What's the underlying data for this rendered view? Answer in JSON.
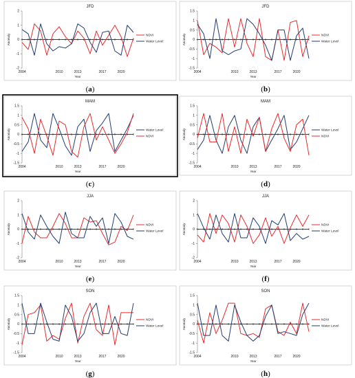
{
  "colors": {
    "ndvi": "#e8282b",
    "water_level": "#1f3a6e",
    "zero_line": "#000000"
  },
  "panels": [
    {
      "label_open": "(",
      "label_letter": "a",
      "label_close": ")"
    },
    {
      "label_open": "(",
      "label_letter": "b",
      "label_close": ")"
    },
    {
      "label_open": "(",
      "label_letter": "c",
      "label_close": ")"
    },
    {
      "label_open": "(",
      "label_letter": "d",
      "label_close": ")"
    },
    {
      "label_open": "(",
      "label_letter": "e",
      "label_close": ")"
    },
    {
      "label_open": "(",
      "label_letter": "f",
      "label_close": ")"
    },
    {
      "label_open": "(",
      "label_letter": "g",
      "label_close": ")"
    },
    {
      "label_open": "(",
      "label_letter": "h",
      "label_close": ")"
    }
  ],
  "chart_data": [
    {
      "type": "line",
      "title": "JFD",
      "xlabel": "Year",
      "ylabel": "Anomaly",
      "ylim": [
        -2,
        2
      ],
      "yticks": [
        -2,
        -1,
        0,
        1,
        2
      ],
      "x": [
        2004,
        2005,
        2006,
        2007,
        2008,
        2009,
        2010,
        2011,
        2012,
        2013,
        2014,
        2015,
        2016,
        2017,
        2018,
        2019,
        2020,
        2021,
        2022
      ],
      "xticks": [
        2004,
        2010,
        2013,
        2017,
        2020
      ],
      "legend_position": "right",
      "series": [
        {
          "name": "NDVI",
          "color": "red",
          "values": [
            -0.2,
            -0.7,
            1.1,
            0.6,
            -1.1,
            0.4,
            0.9,
            0.2,
            -0.3,
            0.6,
            0.1,
            -1.0,
            0.6,
            -0.4,
            0.3,
            1.0,
            0.2,
            -1.2,
            0.1
          ]
        },
        {
          "name": "Water Level",
          "color": "navy",
          "values": [
            0.7,
            0.4,
            -1.1,
            1.1,
            -0.3,
            -0.8,
            -0.5,
            -0.6,
            -0.3,
            1.1,
            0.8,
            -0.2,
            -0.9,
            0.5,
            0.6,
            -0.8,
            -1.1,
            1.0,
            0.5
          ]
        }
      ]
    },
    {
      "type": "line",
      "title": "JFD",
      "xlabel": "Year",
      "ylabel": "Anomaly",
      "ylim": [
        -1.5,
        1.5
      ],
      "yticks": [
        -1.5,
        -1,
        -0.5,
        0,
        0.5,
        1,
        1.5
      ],
      "x": [
        2004,
        2005,
        2006,
        2007,
        2008,
        2009,
        2010,
        2011,
        2012,
        2013,
        2014,
        2015,
        2016,
        2017,
        2018,
        2019,
        2020,
        2021,
        2022
      ],
      "xticks": [
        2004,
        2010,
        2013,
        2017,
        2020
      ],
      "legend_position": "right",
      "series": [
        {
          "name": "NDVI",
          "color": "red",
          "values": [
            1.0,
            -0.8,
            -0.2,
            -0.4,
            -0.7,
            1.1,
            -0.4,
            1.1,
            -0.2,
            -0.9,
            1.1,
            -0.9,
            -1.1,
            0.5,
            -1.1,
            0.9,
            1.0,
            -0.9,
            0.2
          ]
        },
        {
          "name": "Water Level",
          "color": "navy",
          "values": [
            0.8,
            0.3,
            -1.0,
            1.1,
            -0.6,
            -0.8,
            -0.6,
            -0.5,
            1.1,
            0.8,
            0.3,
            -0.3,
            -1.1,
            0.5,
            0.5,
            -1.1,
            0.2,
            0.6,
            -1.0
          ]
        }
      ]
    },
    {
      "type": "line",
      "title": "MAM",
      "xlabel": "Year",
      "ylabel": "Anomaly",
      "ylim": [
        -1.5,
        1.5
      ],
      "yticks": [
        -1.5,
        -1,
        -0.5,
        0,
        0.5,
        1,
        1.5
      ],
      "x": [
        2004,
        2005,
        2006,
        2007,
        2008,
        2009,
        2010,
        2011,
        2012,
        2013,
        2014,
        2015,
        2016,
        2017,
        2018,
        2019,
        2020,
        2021,
        2022
      ],
      "xticks": [
        2004,
        2010,
        2013,
        2017,
        2020
      ],
      "legend_position": "right",
      "series": [
        {
          "name": "Water Level",
          "color": "navy",
          "values": [
            -0.9,
            -0.4,
            1.1,
            -0.3,
            -0.7,
            1.1,
            0.3,
            -0.6,
            -1.1,
            0.4,
            0.8,
            -0.9,
            0.2,
            0.6,
            1.1,
            -0.9,
            -0.3,
            0.3,
            1.0
          ]
        },
        {
          "name": "NDVI",
          "color": "red",
          "values": [
            0.9,
            0.3,
            -1.0,
            0.8,
            -0.1,
            -1.1,
            0.7,
            0.5,
            -0.9,
            -1.2,
            0.4,
            1.1,
            -0.3,
            0.4,
            -0.3,
            -1.0,
            -0.5,
            0.1,
            1.1
          ]
        }
      ]
    },
    {
      "type": "line",
      "title": "MAM",
      "xlabel": "Year",
      "ylabel": "Anomaly",
      "ylim": [
        -1.5,
        1.5
      ],
      "yticks": [
        -1.5,
        -1,
        -0.5,
        0,
        0.5,
        1,
        1.5
      ],
      "x": [
        2004,
        2005,
        2006,
        2007,
        2008,
        2009,
        2010,
        2011,
        2012,
        2013,
        2014,
        2015,
        2016,
        2017,
        2018,
        2019,
        2020,
        2021,
        2022
      ],
      "xticks": [
        2004,
        2010,
        2013,
        2017,
        2020
      ],
      "legend_position": "right",
      "series": [
        {
          "name": "Water Level",
          "color": "navy",
          "values": [
            -0.8,
            -0.3,
            1.0,
            -0.3,
            -1.0,
            0.4,
            1.0,
            -0.3,
            -1.0,
            0.4,
            0.9,
            -0.9,
            -0.3,
            0.3,
            1.0,
            -0.8,
            -0.4,
            0.3,
            1.0
          ]
        },
        {
          "name": "NDVI",
          "color": "red",
          "values": [
            -0.2,
            1.1,
            -0.4,
            -0.4,
            1.1,
            -0.9,
            0.4,
            -1.0,
            0.8,
            -0.1,
            0.9,
            -0.9,
            0.3,
            1.1,
            -0.2,
            -0.9,
            0.5,
            0.8,
            -1.1
          ]
        }
      ]
    },
    {
      "type": "line",
      "title": "JJA",
      "xlabel": "Year",
      "ylabel": "Anomaly",
      "ylim": [
        -2,
        2
      ],
      "yticks": [
        -2,
        -1,
        0,
        1,
        2
      ],
      "x": [
        2004,
        2005,
        2006,
        2007,
        2008,
        2009,
        2010,
        2011,
        2012,
        2013,
        2014,
        2015,
        2016,
        2017,
        2018,
        2019,
        2020,
        2021,
        2022
      ],
      "xticks": [
        2004,
        2010,
        2013,
        2017,
        2020
      ],
      "legend_position": "right",
      "series": [
        {
          "name": "NDVI",
          "color": "red",
          "values": [
            -1.0,
            0.9,
            -0.2,
            -0.6,
            -0.6,
            0.2,
            1.1,
            0.4,
            -0.6,
            -0.6,
            0.8,
            0.5,
            0.6,
            -0.3,
            -1.1,
            -0.9,
            0.2,
            -0.1,
            1.0
          ]
        },
        {
          "name": "Water Level",
          "color": "navy",
          "values": [
            1.1,
            -0.2,
            -0.7,
            1.0,
            0.2,
            -0.5,
            -1.0,
            1.2,
            -0.3,
            -0.6,
            -0.6,
            0.9,
            0.2,
            0.8,
            -1.0,
            1.1,
            0.5,
            -0.5,
            -0.7
          ]
        }
      ]
    },
    {
      "type": "line",
      "title": "JJA",
      "xlabel": "Year",
      "ylabel": "Anomaly",
      "ylim": [
        -2,
        2
      ],
      "yticks": [
        -2,
        -1,
        0,
        1,
        2
      ],
      "x": [
        2004,
        2005,
        2006,
        2007,
        2008,
        2009,
        2010,
        2011,
        2012,
        2013,
        2014,
        2015,
        2016,
        2017,
        2018,
        2019,
        2020,
        2021,
        2022
      ],
      "xticks": [
        2004,
        2010,
        2013,
        2017,
        2020
      ],
      "legend_position": "right",
      "series": [
        {
          "name": "NDVI",
          "color": "red",
          "values": [
            -0.4,
            -0.9,
            1.1,
            -0.3,
            1.0,
            0.4,
            -0.9,
            1.0,
            0.2,
            -1.0,
            -0.4,
            0.8,
            -0.5,
            0.2,
            -1.0,
            0.1,
            1.0,
            0.2,
            1.0
          ]
        },
        {
          "name": "Water Level",
          "color": "navy",
          "values": [
            1.1,
            0.1,
            -0.7,
            1.0,
            -0.3,
            -0.9,
            1.1,
            -0.6,
            -0.6,
            0.8,
            0.2,
            -1.0,
            0.6,
            0.3,
            1.1,
            -0.8,
            -0.3,
            -0.7,
            -0.5
          ]
        }
      ]
    },
    {
      "type": "line",
      "title": "SON",
      "xlabel": "Year",
      "ylabel": "Anomaly",
      "ylim": [
        -1.5,
        1.5
      ],
      "yticks": [
        -1.5,
        -1,
        -0.5,
        0,
        0.5,
        1,
        1.5
      ],
      "x": [
        2004,
        2005,
        2006,
        2007,
        2008,
        2009,
        2010,
        2011,
        2012,
        2013,
        2014,
        2015,
        2016,
        2017,
        2018,
        2019,
        2020,
        2021,
        2022
      ],
      "xticks": [
        2004,
        2010,
        2013,
        2017,
        2020
      ],
      "legend_position": "right",
      "series": [
        {
          "name": "NDVI",
          "color": "red",
          "values": [
            -1.1,
            0.5,
            0.6,
            1.0,
            -0.9,
            -0.6,
            -0.8,
            0.3,
            1.1,
            -1.0,
            0.4,
            1.1,
            -0.3,
            -0.6,
            1.0,
            -1.1,
            0.6,
            0.6,
            0.6
          ]
        },
        {
          "name": "Water Level",
          "color": "navy",
          "values": [
            1.1,
            -0.5,
            -0.5,
            1.1,
            0.1,
            -0.8,
            -0.9,
            1.0,
            0.4,
            -0.9,
            -0.5,
            0.6,
            1.1,
            -0.5,
            -0.5,
            0.4,
            -0.5,
            -0.6,
            1.1
          ]
        }
      ]
    },
    {
      "type": "line",
      "title": "SON",
      "xlabel": "Year",
      "ylabel": "Anomaly",
      "ylim": [
        -1.5,
        1.5
      ],
      "yticks": [
        -1.5,
        -1,
        -0.5,
        0,
        0.5,
        1,
        1.5
      ],
      "x": [
        2004,
        2005,
        2006,
        2007,
        2008,
        2009,
        2010,
        2011,
        2012,
        2013,
        2014,
        2015,
        2016,
        2017,
        2018,
        2019,
        2020,
        2021,
        2022
      ],
      "xticks": [
        2004,
        2010,
        2013,
        2017,
        2020
      ],
      "legend_position": "right",
      "series": [
        {
          "name": "NDVI",
          "color": "red",
          "values": [
            0.2,
            -1.0,
            0.6,
            -0.5,
            0.2,
            1.1,
            1.1,
            -0.5,
            -0.6,
            -0.5,
            -0.7,
            0.8,
            1.0,
            -0.4,
            -0.6,
            0.1,
            -0.5,
            1.1,
            -0.4
          ]
        },
        {
          "name": "Water Level",
          "color": "navy",
          "values": [
            1.1,
            -0.6,
            -0.6,
            1.0,
            -0.6,
            -0.9,
            1.0,
            0.1,
            -0.6,
            -0.9,
            -0.6,
            0.4,
            1.0,
            -0.5,
            -0.4,
            -0.5,
            -0.6,
            0.5,
            1.1
          ]
        }
      ]
    }
  ]
}
